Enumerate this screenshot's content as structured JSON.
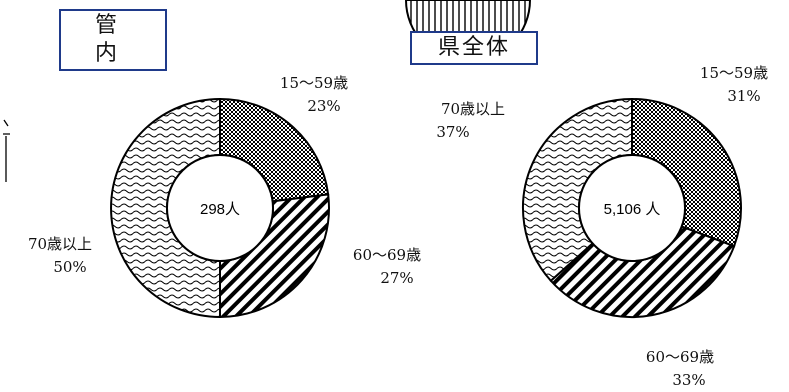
{
  "chart_data": [
    {
      "type": "pie",
      "title": "管 内",
      "total_label": "298人",
      "slices": [
        {
          "category": "15〜59歳",
          "percent_label": "23%",
          "value": 23,
          "pattern": "checker"
        },
        {
          "category": "60〜69歳",
          "percent_label": "27%",
          "value": 27,
          "pattern": "diagonal"
        },
        {
          "category": "70歳以上",
          "percent_label": "50%",
          "value": 50,
          "pattern": "wave"
        }
      ]
    },
    {
      "type": "pie",
      "title": "県全体",
      "total_label": "5,106 人",
      "slices": [
        {
          "category": "15〜59歳",
          "percent_label": "31%",
          "value": 31,
          "pattern": "checker"
        },
        {
          "category": "60〜69歳",
          "percent_label": "33%",
          "value": 33,
          "pattern": "diagonal"
        },
        {
          "category": "70歳以上",
          "percent_label": "37%",
          "value": 37,
          "pattern": "wave"
        }
      ]
    }
  ],
  "colors": {
    "title_border": "#1f3a8a",
    "outline": "#000000"
  }
}
